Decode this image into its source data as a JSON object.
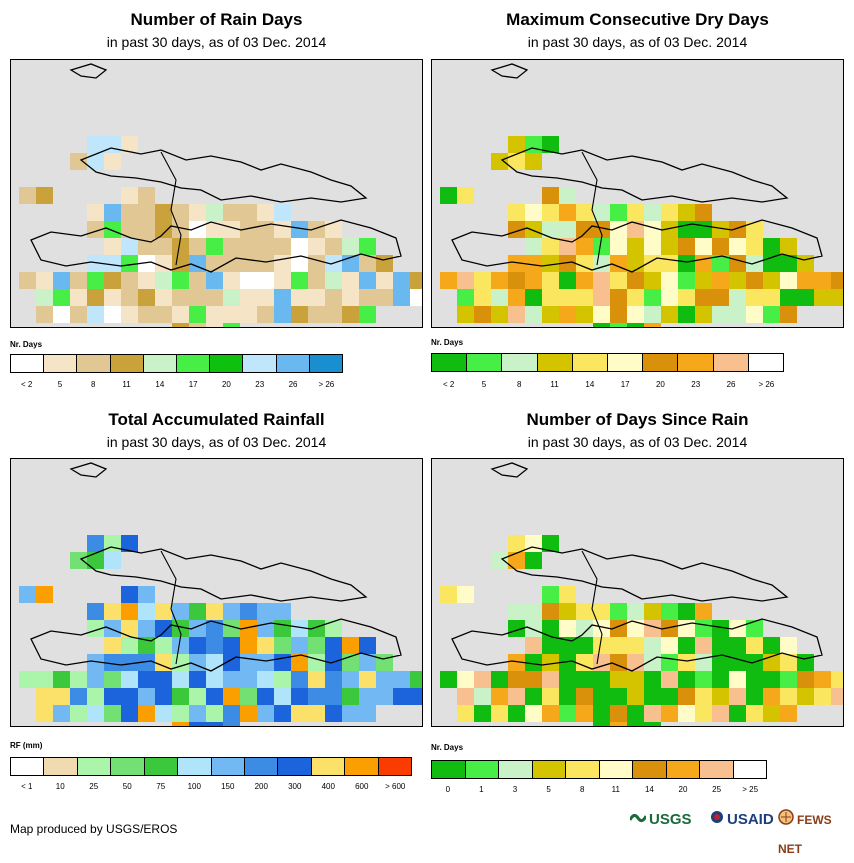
{
  "panels": [
    {
      "id": "rain-days",
      "title": "Number of Rain Days",
      "subtitle": "in past 30 days, as of 03 Dec. 2014",
      "legend_title": "Nr. Days",
      "legend_colors": [
        "#ffffff",
        "#f5e4c6",
        "#e0c793",
        "#c9a23b",
        "#c9f2c9",
        "#46ee46",
        "#0fc10f",
        "#bfe6fa",
        "#6ab8f0",
        "#1a8fd0"
      ],
      "legend_labels": [
        "< 2",
        "5",
        "8",
        "11",
        "14",
        "17",
        "20",
        "23",
        "26",
        "> 26"
      ],
      "label_mode": "center"
    },
    {
      "id": "max-dry-days",
      "title": "Maximum Consecutive Dry Days",
      "subtitle": "in past 30 days, as of 03 Dec. 2014",
      "legend_title": "Nr. Days",
      "legend_colors": [
        "#10bc10",
        "#46ee46",
        "#c9f2c9",
        "#d4c400",
        "#fbe660",
        "#fffcc8",
        "#d9900a",
        "#f5a81a",
        "#f8c08e",
        "#ffffff"
      ],
      "legend_labels": [
        "< 2",
        "5",
        "8",
        "11",
        "14",
        "17",
        "20",
        "23",
        "26",
        "> 26"
      ],
      "label_mode": "center"
    },
    {
      "id": "total-rainfall",
      "title": "Total Accumulated Rainfall",
      "subtitle": "in past 30 days, as of 03 Dec. 2014",
      "legend_title": "RF (mm)",
      "legend_colors": [
        "#ffffff",
        "#f0dbb0",
        "#aaf5aa",
        "#72e072",
        "#3cc83c",
        "#b0e4fa",
        "#72b8f2",
        "#3c8ce6",
        "#1c64dc",
        "#fbe06a",
        "#fb9e00",
        "#fb3c00"
      ],
      "legend_labels": [
        "< 1",
        "10",
        "25",
        "50",
        "75",
        "100",
        "150",
        "200",
        "300",
        "400",
        "600",
        "> 600"
      ],
      "label_mode": "center"
    },
    {
      "id": "days-since-rain",
      "title": "Number of Days Since Rain",
      "subtitle": "in past 30 days, as of 03 Dec. 2014",
      "legend_title": "Nr. Days",
      "legend_colors": [
        "#10bc10",
        "#46ee46",
        "#c9f2c9",
        "#d4c400",
        "#fbe660",
        "#fffcc8",
        "#d9900a",
        "#f5a81a",
        "#f8c08e",
        "#ffffff"
      ],
      "legend_labels": [
        "0",
        "1",
        "3",
        "5",
        "8",
        "11",
        "14",
        "20",
        "25",
        "> 25"
      ],
      "label_mode": "center"
    }
  ],
  "footer": {
    "credit": "Map produced by USGS/EROS",
    "logo_usgs": "USGS",
    "logo_usaid": "USAID",
    "logo_fews": "FEWS NET"
  }
}
